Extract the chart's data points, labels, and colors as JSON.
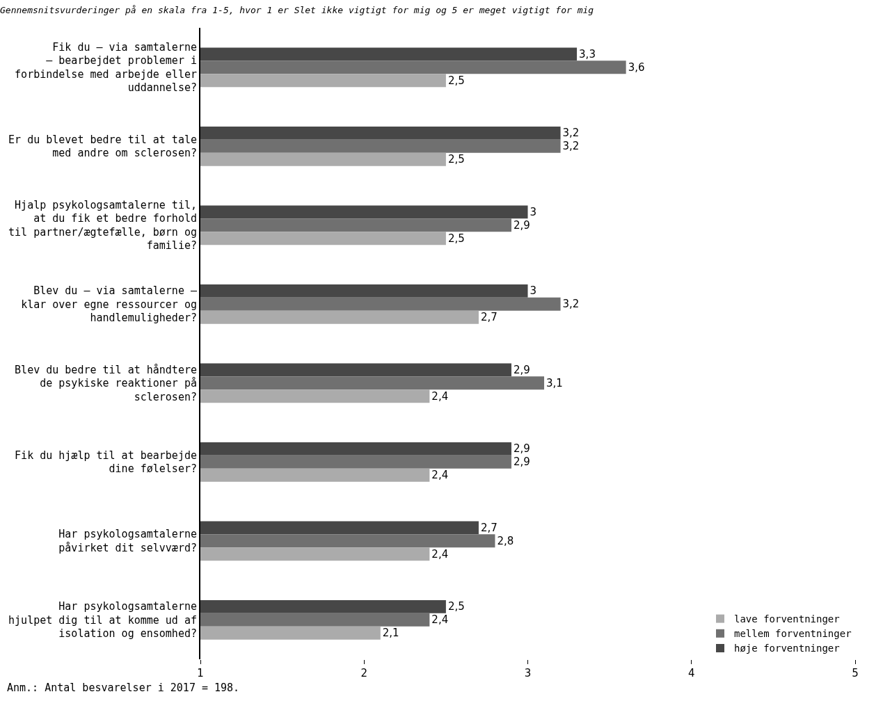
{
  "chart_data": {
    "type": "bar",
    "orientation": "horizontal",
    "title": "Gennemsnitsvurderinger på en skala fra 1-5, hvor 1 er Slet ikke vigtigt for mig og 5 er meget vigtigt for mig",
    "categories": [
      "Fik du – via samtalerne\n– bearbejdet problemer i\nforbindelse med arbejde eller\nuddannelse?",
      "Er du blevet bedre til at tale\nmed andre om sclerosen?",
      "Hjalp psykologsamtalerne til,\nat du fik et bedre forhold\ntil partner/ægtefælle, børn og\nfamilie?",
      "Blev du – via samtalerne –\nklar over egne ressourcer og\nhandlemuligheder?",
      "Blev du bedre til at håndtere\nde psykiske reaktioner på\nsclerosen?",
      "Fik du hjælp til at bearbejde\ndine følelser?",
      "Har psykologsamtalerne\npåvirket dit selvværd?",
      "Har psykologsamtalerne\nhjulpet dig til at komme ud af\nisolation og ensomhed?"
    ],
    "series": [
      {
        "name": "høje forventninger",
        "color": "#474747",
        "values": [
          3.3,
          3.2,
          3,
          3,
          2.9,
          2.9,
          2.7,
          2.5
        ],
        "value_labels": [
          "3,3",
          "3,2",
          "3",
          "3",
          "2,9",
          "2,9",
          "2,7",
          "2,5"
        ]
      },
      {
        "name": "mellem forventninger",
        "color": "#707070",
        "values": [
          3.6,
          3.2,
          2.9,
          3.2,
          3.1,
          2.9,
          2.8,
          2.4
        ],
        "value_labels": [
          "3,6",
          "3,2",
          "2,9",
          "3,2",
          "3,1",
          "2,9",
          "2,8",
          "2,4"
        ]
      },
      {
        "name": "lave forventninger",
        "color": "#ababab",
        "values": [
          2.5,
          2.5,
          2.5,
          2.7,
          2.4,
          2.4,
          2.4,
          2.1
        ],
        "value_labels": [
          "2,5",
          "2,5",
          "2,5",
          "2,7",
          "2,4",
          "2,4",
          "2,4",
          "2,1"
        ]
      }
    ],
    "xlim": [
      1,
      5
    ],
    "xticks": [
      1,
      2,
      3,
      4,
      5
    ],
    "legend": "bottom right",
    "annotations": [
      "Anm.: Antal besvarelser i 2017 = 198."
    ]
  }
}
